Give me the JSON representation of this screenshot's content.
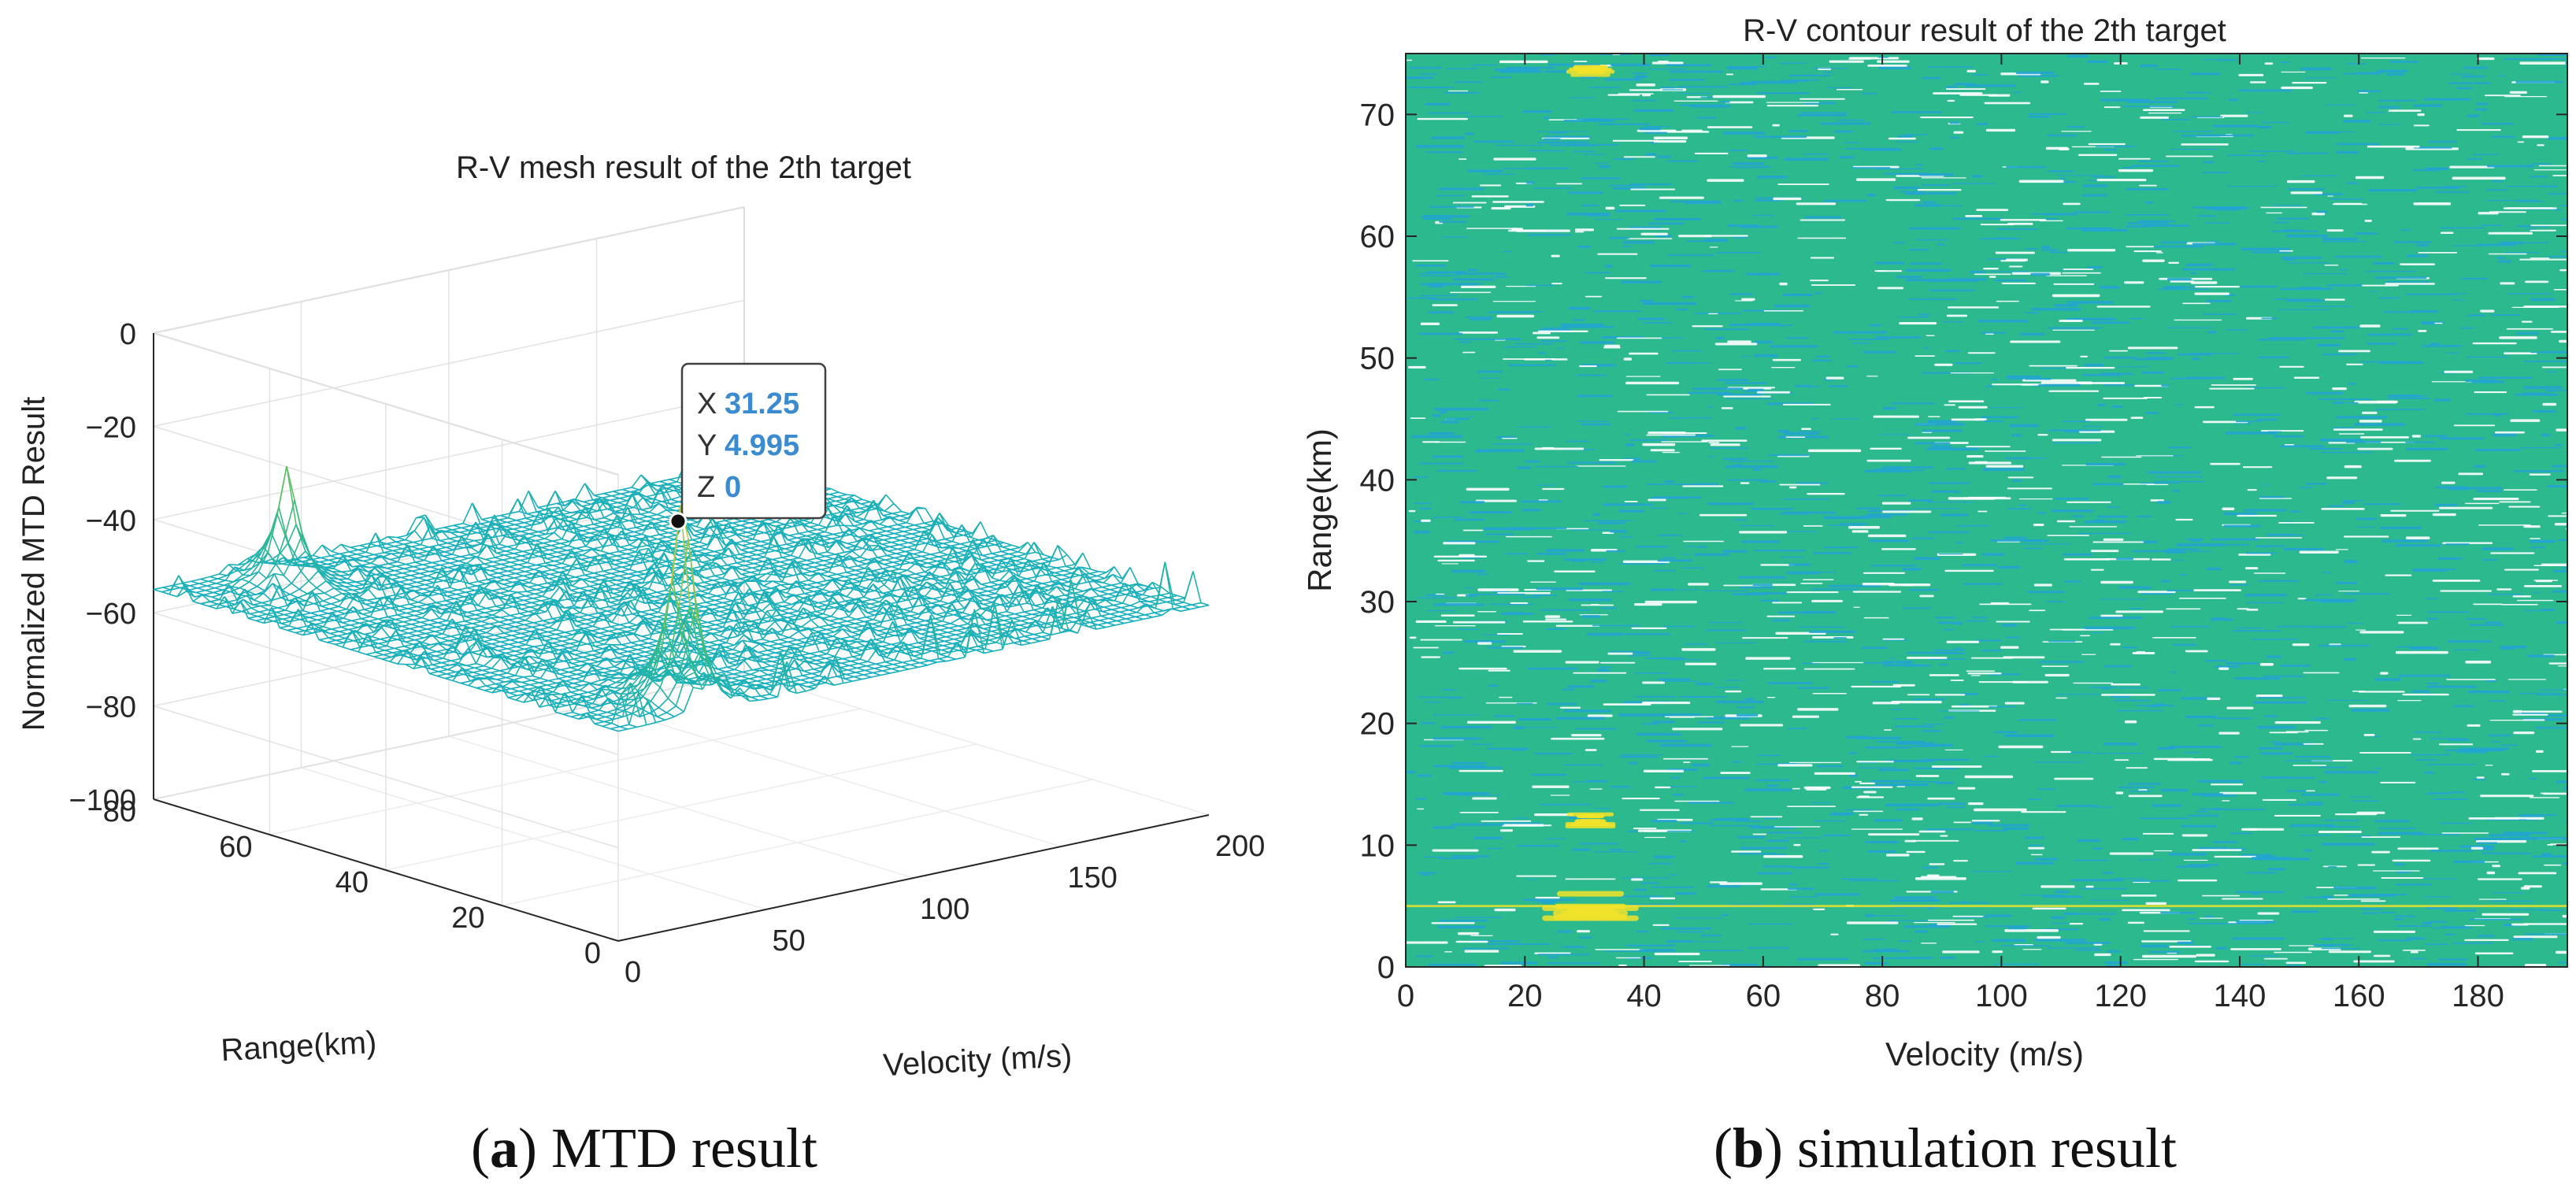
{
  "chart_data": [
    {
      "type": "surface",
      "panel_label": "a",
      "caption": "MTD result",
      "title": "R-V mesh result of the 2th target",
      "xlabel": "Velocity (m/s)",
      "ylabel": "Range(km)",
      "zlabel": "Normalized MTD Result",
      "xlim": [
        0,
        200
      ],
      "ylim": [
        0,
        80
      ],
      "zlim": [
        -100,
        0
      ],
      "x_ticks": [
        "0",
        "50",
        "100",
        "150",
        "200"
      ],
      "y_ticks": [
        "0",
        "20",
        "40",
        "60",
        "80"
      ],
      "z_ticks": [
        "0",
        "−20",
        "−40",
        "−60",
        "−80",
        "−100"
      ],
      "noise_floor_range": [
        -95,
        -45
      ],
      "peaks": [
        {
          "x": 31.25,
          "y": 4.995,
          "z": 0
        },
        {
          "x": 31.25,
          "y": 73,
          "z": -25
        }
      ],
      "datatip": {
        "x_label": "X",
        "x_value": "31.25",
        "y_label": "Y",
        "y_value": "4.995",
        "z_label": "Z",
        "z_value": "0"
      },
      "grid": true
    },
    {
      "type": "contour",
      "panel_label": "b",
      "caption": "simulation result",
      "title": "R-V contour result of the 2th target",
      "xlabel": "Velocity (m/s)",
      "ylabel": "Range(km)",
      "xlim": [
        0,
        195
      ],
      "ylim": [
        0,
        75
      ],
      "x_ticks": [
        "0",
        "20",
        "40",
        "60",
        "80",
        "100",
        "120",
        "140",
        "160",
        "180"
      ],
      "y_ticks": [
        "0",
        "10",
        "20",
        "30",
        "40",
        "50",
        "60",
        "70"
      ],
      "background_color": "#2db98e",
      "hot_color": "#f2e32a",
      "streak_colors": [
        "#22a5d3",
        "#ffffff"
      ],
      "hotspots": [
        {
          "x": 31,
          "y": 5,
          "strength": 1.0
        },
        {
          "x": 31,
          "y": 12,
          "strength": 0.5
        },
        {
          "x": 31,
          "y": 73.5,
          "strength": 0.5
        }
      ],
      "ridge_range": 5
    }
  ]
}
